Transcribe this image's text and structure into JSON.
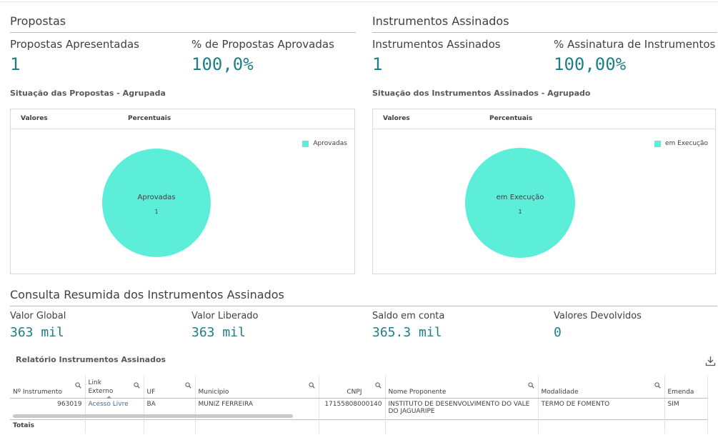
{
  "propostas": {
    "section_title": "Propostas",
    "kpi1_label": "Propostas Apresentadas",
    "kpi1_value": "1",
    "kpi2_label": "% de Propostas Aprovadas",
    "kpi2_value": "100,0%",
    "chart_title": "Situação das Propostas - Agrupada",
    "tab1": "Valores",
    "tab2": "Percentuais",
    "legend": "Aprovadas",
    "slice_label": "Aprovadas",
    "slice_value": "1"
  },
  "instrumentos": {
    "section_title": "Instrumentos Assinados",
    "kpi1_label": "Instrumentos Assinados",
    "kpi1_value": "1",
    "kpi2_label": "% Assinatura de Instrumentos",
    "kpi2_value": "100,00%",
    "chart_title": "Situação dos Instrumentos Assinados - Agrupado",
    "tab1": "Valores",
    "tab2": "Percentuais",
    "legend": "em Execução",
    "slice_label": "em Execução",
    "slice_value": "1"
  },
  "consulta": {
    "section_title": "Consulta Resumida dos Instrumentos Assinados",
    "kpis": [
      {
        "label": "Valor Global",
        "value": "363 mil"
      },
      {
        "label": "Valor Liberado",
        "value": "363 mil"
      },
      {
        "label": "Saldo em conta",
        "value": "365.3 mil"
      },
      {
        "label": "Valores Devolvidos",
        "value": "0"
      }
    ]
  },
  "relatorio": {
    "title": "Relatório Instrumentos Assinados",
    "columns": [
      "Nº Instrumento",
      "Link Externo",
      "UF",
      "Município",
      "CNPJ",
      "Nome Proponente",
      "Modalidade",
      "Emenda"
    ],
    "rows": [
      {
        "instrumento": "963019",
        "link": "Acesso Livre",
        "uf": "BA",
        "municipio": "MUNIZ FERREIRA",
        "cnpj": "17155808000140",
        "proponente": "INSTITUTO DE DESENVOLVIMENTO DO VALE DO JAGUARIPE",
        "modalidade": "TERMO DE FOMENTO",
        "emenda": "SIM"
      }
    ],
    "totals_label": "Totais"
  },
  "colors": {
    "accent": "#1e7f86",
    "pie": "#5ceed8",
    "link": "#3a6fb0"
  },
  "chart_data": [
    {
      "type": "pie",
      "title": "Situação das Propostas - Agrupada",
      "categories": [
        "Aprovadas"
      ],
      "values": [
        1
      ],
      "legend": "top-right"
    },
    {
      "type": "pie",
      "title": "Situação dos Instrumentos Assinados - Agrupado",
      "categories": [
        "em Execução"
      ],
      "values": [
        1
      ],
      "legend": "top-right"
    }
  ]
}
